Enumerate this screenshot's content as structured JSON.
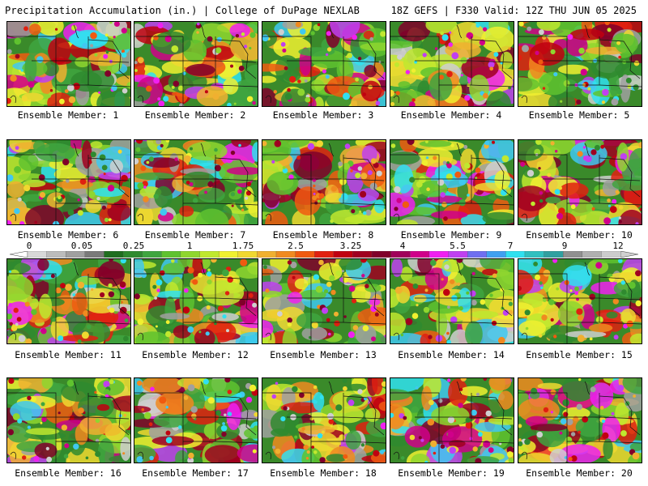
{
  "header": {
    "title": "Precipitation Accumulation (in.) | College of DuPage NEXLAB",
    "run_info": "18Z GEFS | F330 Valid: 12Z THU JUN 05 2025"
  },
  "colorbar": {
    "tick_labels": [
      "0",
      "0.05",
      "0.25",
      "1",
      "1.75",
      "2.5",
      "3.25",
      "4",
      "5.5",
      "7",
      "9",
      "12"
    ],
    "colors": [
      "#d8d8d8",
      "#bcbcbc",
      "#a0a0a0",
      "#7a7a7a",
      "#1f6e1f",
      "#2f8a2f",
      "#3fa53f",
      "#5fc22f",
      "#8fd62f",
      "#c0e82f",
      "#f0f030",
      "#f0d830",
      "#f0b030",
      "#f08a20",
      "#f05a10",
      "#e02010",
      "#c00010",
      "#a00020",
      "#80002a",
      "#a0005a",
      "#d0008a",
      "#f020f0",
      "#c040f0",
      "#6f6ff0",
      "#40a0f0",
      "#30e0f0",
      "#30c0c0",
      "#30a0a0",
      "#909090",
      "#b0b0b0",
      "#cccccc"
    ]
  },
  "members": [
    {
      "caption": "Ensemble Member: 1"
    },
    {
      "caption": "Ensemble Member: 2"
    },
    {
      "caption": "Ensemble Member: 3"
    },
    {
      "caption": "Ensemble Member: 4"
    },
    {
      "caption": "Ensemble Member: 5"
    },
    {
      "caption": "Ensemble Member: 6"
    },
    {
      "caption": "Ensemble Member: 7"
    },
    {
      "caption": "Ensemble Member: 8"
    },
    {
      "caption": "Ensemble Member: 9"
    },
    {
      "caption": "Ensemble Member: 10"
    },
    {
      "caption": "Ensemble Member: 11"
    },
    {
      "caption": "Ensemble Member: 12"
    },
    {
      "caption": "Ensemble Member: 13"
    },
    {
      "caption": "Ensemble Member: 14"
    },
    {
      "caption": "Ensemble Member: 15"
    },
    {
      "caption": "Ensemble Member: 16"
    },
    {
      "caption": "Ensemble Member: 17"
    },
    {
      "caption": "Ensemble Member: 18"
    },
    {
      "caption": "Ensemble Member: 19"
    },
    {
      "caption": "Ensemble Member: 20"
    }
  ]
}
